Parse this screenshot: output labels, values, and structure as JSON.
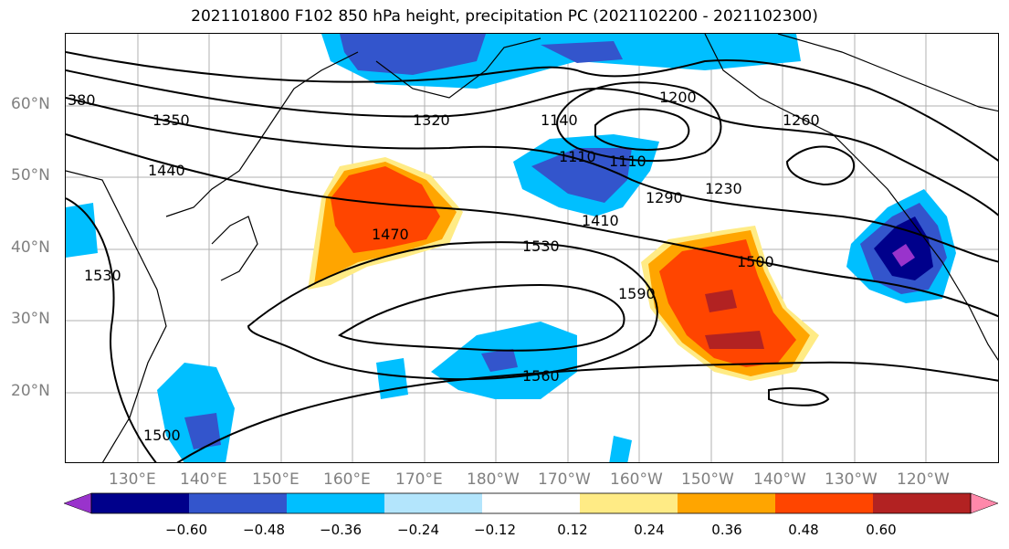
{
  "title": "2021101800 F102 850 hPa height, precipitation PC (2021102200 - 2021102300)",
  "lat_labels": [
    "60°N",
    "50°N",
    "40°N",
    "30°N",
    "20°N"
  ],
  "lon_labels": [
    "130°E",
    "140°E",
    "150°E",
    "160°E",
    "170°E",
    "180°W",
    "170°W",
    "160°W",
    "150°W",
    "140°W",
    "130°W",
    "120°W"
  ],
  "contour_labels": [
    "380",
    "1350",
    "1320",
    "1440",
    "1470",
    "1530",
    "1530",
    "1500",
    "1410",
    "1290",
    "1230",
    "1200",
    "1260",
    "1140",
    "1110",
    "1110",
    "1590",
    "1560",
    "1500"
  ],
  "colorbar": {
    "colors": [
      "#9933cc",
      "#00008b",
      "#3355cc",
      "#00bfff",
      "#b3e5fc",
      "#ffffff",
      "#ffeb85",
      "#ffa500",
      "#ff4500",
      "#b22222",
      "#ff88aa"
    ],
    "tick_labels": [
      "−0.60",
      "−0.48",
      "−0.36",
      "−0.24",
      "−0.12",
      "0.12",
      "0.24",
      "0.36",
      "0.48",
      "0.60"
    ]
  }
}
